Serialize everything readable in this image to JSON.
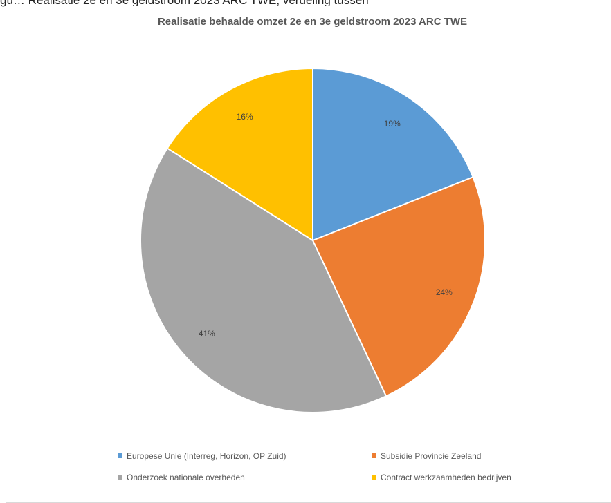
{
  "caption": "gu… Realisatie 2e en 3e geldstroom 2023 ARC TWE; verdeling tussen",
  "chart_data": {
    "type": "pie",
    "title": "Realisatie behaalde omzet 2e en 3e geldstroom 2023 ARC TWE",
    "categories": [
      "Europese Unie (Interreg, Horizon, OP Zuid)",
      "Subsidie Provincie Zeeland",
      "Onderzoek nationale overheden",
      "Contract werkzaamheden bedrijven"
    ],
    "values": [
      19,
      24,
      41,
      16
    ],
    "labels": [
      "19%",
      "24%",
      "41%",
      "16%"
    ],
    "colors": [
      "#5B9BD5",
      "#ED7D31",
      "#A5A5A5",
      "#FFC000"
    ],
    "legend_position": "bottom"
  }
}
